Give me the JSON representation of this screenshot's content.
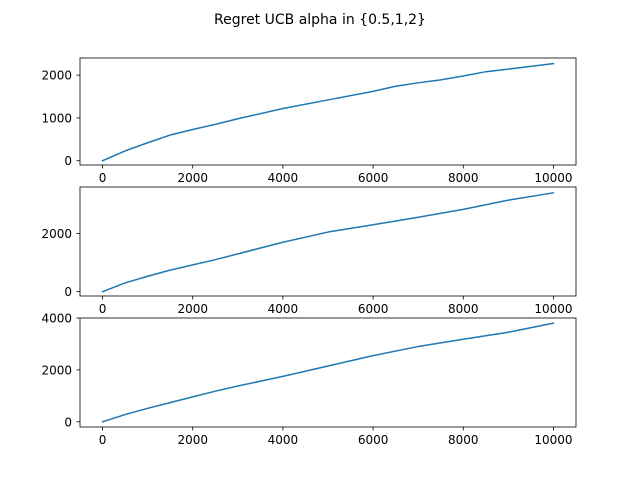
{
  "figure": {
    "title": "Regret UCB alpha in {0.5,1,2}"
  },
  "colors": {
    "line": "#1f77b4",
    "axes": "#000000",
    "background": "#ffffff"
  },
  "chart_data": [
    {
      "type": "line",
      "title": "",
      "xlabel": "",
      "ylabel": "",
      "xlim": [
        -500,
        10500
      ],
      "ylim": [
        -100,
        2400
      ],
      "xticks": [
        0,
        2000,
        4000,
        6000,
        8000,
        10000
      ],
      "yticks": [
        0,
        1000,
        2000
      ],
      "grid": false,
      "series": [
        {
          "x": [
            0,
            500,
            1000,
            1500,
            2000,
            2500,
            3000,
            4000,
            5000,
            6000,
            6500,
            7000,
            7500,
            8000,
            8500,
            9000,
            10000
          ],
          "y": [
            0,
            230,
            420,
            600,
            730,
            850,
            980,
            1220,
            1420,
            1620,
            1740,
            1820,
            1890,
            1980,
            2080,
            2140,
            2270
          ]
        }
      ]
    },
    {
      "type": "line",
      "title": "",
      "xlabel": "",
      "ylabel": "",
      "xlim": [
        -500,
        10500
      ],
      "ylim": [
        -150,
        3600
      ],
      "xticks": [
        0,
        2000,
        4000,
        6000,
        8000,
        10000
      ],
      "yticks": [
        0,
        2000
      ],
      "grid": false,
      "series": [
        {
          "x": [
            0,
            500,
            1000,
            1500,
            2000,
            2500,
            3000,
            4000,
            5000,
            6000,
            7000,
            8000,
            9000,
            10000
          ],
          "y": [
            0,
            300,
            530,
            740,
            920,
            1100,
            1300,
            1700,
            2050,
            2300,
            2560,
            2830,
            3150,
            3400
          ]
        }
      ]
    },
    {
      "type": "line",
      "title": "",
      "xlabel": "",
      "ylabel": "",
      "xlim": [
        -500,
        10500
      ],
      "ylim": [
        -200,
        4000
      ],
      "xticks": [
        0,
        2000,
        4000,
        6000,
        8000,
        10000
      ],
      "yticks": [
        0,
        2000,
        4000
      ],
      "grid": false,
      "series": [
        {
          "x": [
            0,
            500,
            1000,
            1500,
            2000,
            2500,
            3000,
            4000,
            5000,
            6000,
            7000,
            8000,
            9000,
            10000
          ],
          "y": [
            0,
            280,
            520,
            740,
            960,
            1180,
            1380,
            1750,
            2150,
            2550,
            2900,
            3180,
            3450,
            3800
          ]
        }
      ]
    }
  ]
}
